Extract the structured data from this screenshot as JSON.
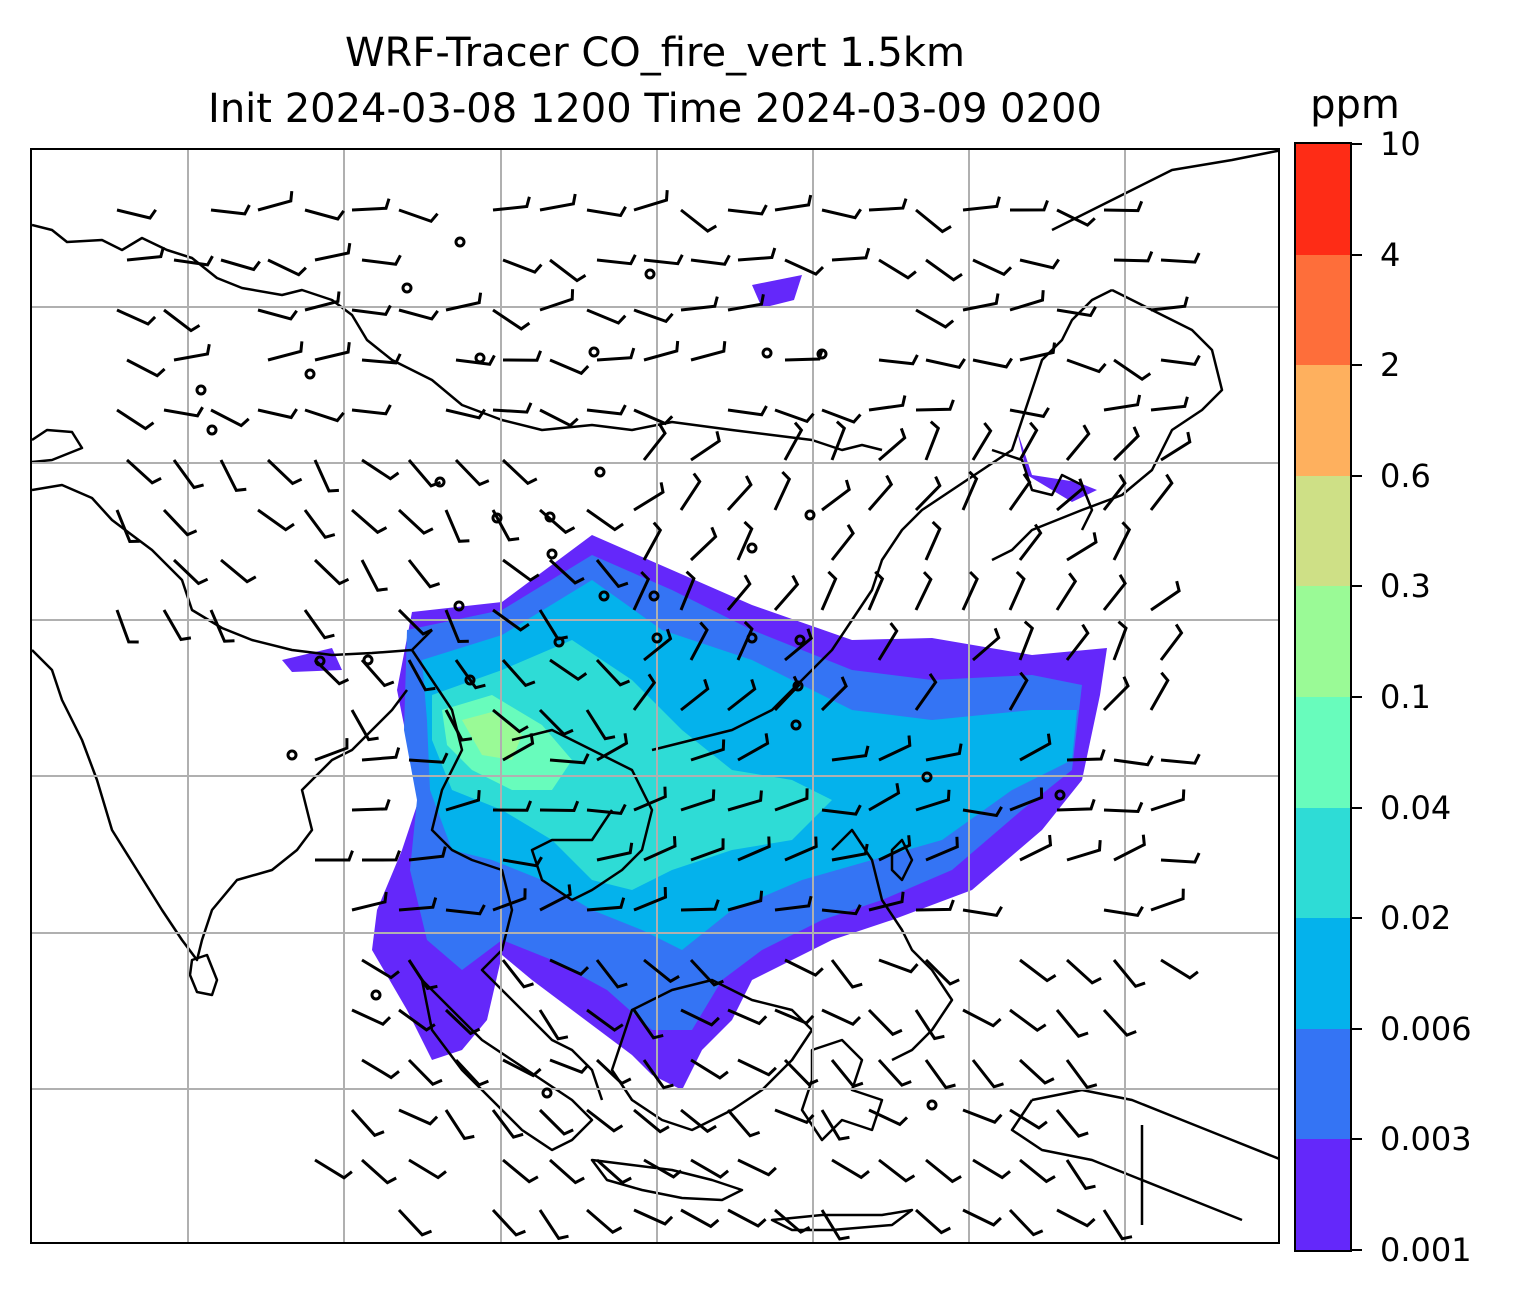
{
  "title": {
    "line1": "WRF-Tracer CO_fire_vert 1.5km",
    "line2": "Init 2024-03-08 1200 Time 2024-03-09 0200"
  },
  "colorbar": {
    "unit": "ppm",
    "levels": [
      "0.001",
      "0.003",
      "0.006",
      "0.02",
      "0.04",
      "0.1",
      "0.3",
      "0.6",
      "2",
      "4",
      "10"
    ],
    "colors": [
      "#6428fa",
      "#3474f4",
      "#04b2ec",
      "#2edcd6",
      "#68fcbc",
      "#9afa96",
      "#cee086",
      "#feb05e",
      "#fe6e3a",
      "#fe2c16"
    ]
  },
  "map": {
    "coastline_color": "#000000",
    "gridline_color": "#b0b0b0",
    "plume_colors": {
      "outer": "#6428fa",
      "middle": "#3474f4",
      "inner": "#04b2ec",
      "core": "#2edcd6",
      "peak": "#68fcbc",
      "max": "#9afa96"
    }
  }
}
